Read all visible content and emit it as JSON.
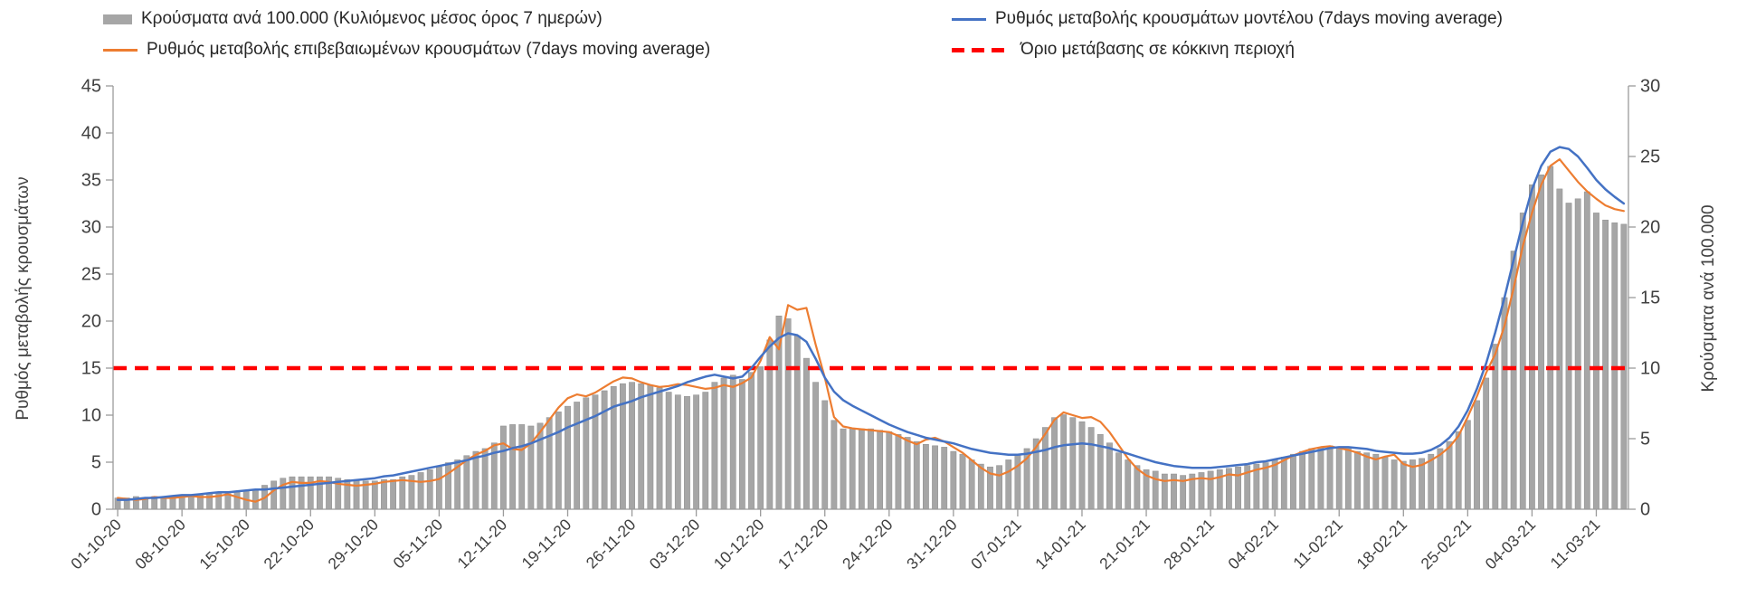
{
  "legend": {
    "items": [
      {
        "id": "cases-bars",
        "label": "Κρούσματα ανά 100.000 (Κυλιόμενος μέσος όρος 7 ημερών)",
        "swatch": "gray-bar"
      },
      {
        "id": "model-line",
        "label": "Ρυθμός μεταβολής κρουσμάτων μοντέλου (7days moving average)",
        "swatch": "blue-line"
      },
      {
        "id": "confirmed-line",
        "label": "Ρυθμός μεταβολής επιβεβαιωμένων κρουσμάτων (7days moving average)",
        "swatch": "orange-line"
      },
      {
        "id": "red-threshold",
        "label": "Όριο μετάβασης σε κόκκινη περιοχή",
        "swatch": "red-dashed"
      }
    ]
  },
  "colors": {
    "bars": "#a6a6a6",
    "bars_stroke": "#8f8f8f",
    "model": "#4472c4",
    "confirmed": "#ed7d31",
    "threshold": "#ff0000",
    "axis": "#9b9b9b",
    "tick_text": "#404040"
  },
  "chart_data": {
    "type": "bar",
    "note": "Daily values 01-10-20 through mid-03-21; bars on right axis, lines on left axis",
    "n_points": 165,
    "x_tick_labels": [
      "01-10-20",
      "08-10-20",
      "15-10-20",
      "22-10-20",
      "29-10-20",
      "05-11-20",
      "12-11-20",
      "19-11-20",
      "26-11-20",
      "03-12-20",
      "10-12-20",
      "17-12-20",
      "24-12-20",
      "31-12-20",
      "07-01-21",
      "14-01-21",
      "21-01-21",
      "28-01-21",
      "04-02-21",
      "11-02-21",
      "18-02-21",
      "25-02-21",
      "04-03-21",
      "11-03-21"
    ],
    "tick_indices": [
      0,
      7,
      14,
      21,
      28,
      35,
      42,
      49,
      56,
      63,
      70,
      77,
      84,
      91,
      98,
      105,
      112,
      119,
      126,
      133,
      140,
      147,
      154,
      161
    ],
    "left_axis": {
      "label": "Ρυθμός μεταβολής κρουσμάτων",
      "min": 0,
      "max": 45,
      "step": 5
    },
    "right_axis": {
      "label": "Κρούσματα ανά 100.000",
      "min": 0,
      "max": 30,
      "step": 5
    },
    "series": [
      {
        "id": "cases_per_100k",
        "name": "Κρούσματα ανά 100.000 (Κυλιόμενος μέσος όρος 7 ημερών)",
        "type": "bar",
        "axis": "right",
        "color": "#a6a6a6",
        "values": [
          0.8,
          0.8,
          0.9,
          0.8,
          0.9,
          0.9,
          0.9,
          0.9,
          1.0,
          1.0,
          1.1,
          1.1,
          1.1,
          1.2,
          1.3,
          1.4,
          1.7,
          2.0,
          2.2,
          2.3,
          2.3,
          2.3,
          2.3,
          2.3,
          2.2,
          2.1,
          2.1,
          2.0,
          2.0,
          2.1,
          2.1,
          2.3,
          2.4,
          2.6,
          2.8,
          3.0,
          3.3,
          3.5,
          3.8,
          4.1,
          4.3,
          4.7,
          5.9,
          6.0,
          6.0,
          5.9,
          6.1,
          6.5,
          6.9,
          7.3,
          7.6,
          7.9,
          8.1,
          8.4,
          8.7,
          8.9,
          9.0,
          8.9,
          8.8,
          8.6,
          8.3,
          8.1,
          8.0,
          8.1,
          8.3,
          9.0,
          9.3,
          9.5,
          9.2,
          9.7,
          10.1,
          12.0,
          13.7,
          13.5,
          12.3,
          10.7,
          9.0,
          7.7,
          6.3,
          5.7,
          5.7,
          5.7,
          5.7,
          5.6,
          5.5,
          5.3,
          5.1,
          4.8,
          4.6,
          4.5,
          4.4,
          4.1,
          3.9,
          3.5,
          3.2,
          3.0,
          3.1,
          3.5,
          3.9,
          4.3,
          5.0,
          5.8,
          6.5,
          6.7,
          6.5,
          6.2,
          5.8,
          5.3,
          4.7,
          4.0,
          3.5,
          3.1,
          2.8,
          2.7,
          2.5,
          2.5,
          2.4,
          2.5,
          2.6,
          2.7,
          2.8,
          2.9,
          3.0,
          3.1,
          3.2,
          3.3,
          3.5,
          3.7,
          3.9,
          4.1,
          4.3,
          4.4,
          4.5,
          4.4,
          4.3,
          4.1,
          4.0,
          3.9,
          3.7,
          3.5,
          3.4,
          3.5,
          3.6,
          3.9,
          4.3,
          4.8,
          5.5,
          6.3,
          7.7,
          9.3,
          11.7,
          15.0,
          18.3,
          21.0,
          23.0,
          23.7,
          24.3,
          22.7,
          21.7,
          22.0,
          22.5,
          21.0,
          20.5,
          20.3,
          20.2
        ]
      },
      {
        "id": "confirmed_rate",
        "name": "Ρυθμός μεταβολής επιβεβαιωμένων κρουσμάτων (7days moving average)",
        "type": "line",
        "axis": "left",
        "color": "#ed7d31",
        "width": 2.2,
        "values": [
          1.2,
          1.1,
          1.0,
          1.1,
          1.3,
          1.2,
          1.2,
          1.3,
          1.4,
          1.3,
          1.3,
          1.4,
          1.6,
          1.3,
          1.0,
          0.8,
          1.2,
          2.0,
          2.6,
          2.9,
          2.8,
          2.8,
          3.0,
          2.9,
          2.7,
          2.6,
          2.5,
          2.6,
          2.7,
          2.9,
          3.0,
          3.1,
          3.0,
          2.9,
          3.0,
          3.2,
          3.8,
          4.5,
          5.2,
          5.8,
          6.2,
          6.8,
          7.0,
          6.4,
          6.3,
          7.0,
          8.2,
          9.5,
          10.8,
          11.8,
          12.2,
          12.0,
          12.4,
          13.0,
          13.6,
          14.0,
          13.9,
          13.5,
          13.2,
          13.0,
          13.1,
          13.3,
          13.2,
          13.0,
          12.8,
          12.9,
          13.2,
          13.0,
          13.4,
          14.0,
          15.8,
          18.3,
          17.0,
          21.7,
          21.2,
          21.4,
          17.5,
          14.0,
          9.8,
          8.8,
          8.6,
          8.5,
          8.4,
          8.3,
          8.2,
          7.8,
          7.3,
          6.9,
          7.4,
          7.6,
          7.2,
          6.6,
          6.0,
          5.2,
          4.4,
          3.8,
          3.6,
          4.0,
          4.6,
          5.4,
          6.6,
          8.0,
          9.5,
          10.3,
          10.0,
          9.7,
          9.8,
          9.3,
          8.2,
          6.8,
          5.4,
          4.3,
          3.6,
          3.2,
          3.0,
          3.1,
          3.0,
          3.2,
          3.3,
          3.2,
          3.4,
          3.7,
          3.6,
          3.9,
          4.2,
          4.4,
          4.7,
          5.2,
          5.7,
          6.1,
          6.4,
          6.6,
          6.7,
          6.5,
          6.3,
          6.0,
          5.6,
          5.3,
          5.6,
          5.8,
          4.8,
          4.5,
          4.7,
          5.2,
          5.8,
          6.6,
          7.8,
          9.8,
          12.0,
          14.5,
          16.5,
          19.5,
          23.5,
          28.0,
          31.5,
          34.5,
          36.5,
          37.2,
          36.0,
          34.8,
          33.8,
          33.0,
          32.3,
          31.9,
          31.7
        ]
      },
      {
        "id": "model_rate",
        "name": "Ρυθμός μεταβολής κρουσμάτων μοντέλου (7days moving average)",
        "type": "line",
        "axis": "left",
        "color": "#4472c4",
        "width": 2.5,
        "values": [
          1.0,
          1.0,
          1.1,
          1.2,
          1.2,
          1.3,
          1.4,
          1.5,
          1.5,
          1.6,
          1.7,
          1.8,
          1.8,
          1.9,
          2.0,
          2.1,
          2.1,
          2.2,
          2.3,
          2.4,
          2.5,
          2.6,
          2.7,
          2.8,
          2.9,
          3.0,
          3.1,
          3.2,
          3.3,
          3.5,
          3.6,
          3.8,
          4.0,
          4.2,
          4.4,
          4.6,
          4.8,
          5.0,
          5.2,
          5.5,
          5.7,
          6.0,
          6.2,
          6.5,
          6.7,
          7.0,
          7.4,
          7.8,
          8.2,
          8.7,
          9.1,
          9.5,
          9.9,
          10.4,
          10.9,
          11.2,
          11.5,
          11.9,
          12.2,
          12.5,
          12.8,
          13.1,
          13.5,
          13.8,
          14.1,
          14.3,
          14.1,
          13.9,
          14.1,
          15.0,
          16.2,
          17.3,
          18.2,
          18.7,
          18.5,
          17.8,
          16.0,
          14.0,
          12.5,
          11.6,
          11.0,
          10.5,
          10.0,
          9.5,
          9.0,
          8.6,
          8.2,
          7.9,
          7.6,
          7.4,
          7.2,
          7.0,
          6.7,
          6.4,
          6.2,
          6.0,
          5.9,
          5.8,
          5.8,
          5.9,
          6.1,
          6.3,
          6.6,
          6.8,
          6.9,
          7.0,
          6.9,
          6.7,
          6.5,
          6.2,
          5.9,
          5.6,
          5.3,
          5.0,
          4.8,
          4.6,
          4.5,
          4.4,
          4.4,
          4.4,
          4.5,
          4.6,
          4.7,
          4.8,
          5.0,
          5.1,
          5.3,
          5.5,
          5.7,
          5.9,
          6.1,
          6.3,
          6.5,
          6.6,
          6.6,
          6.5,
          6.4,
          6.2,
          6.1,
          6.0,
          5.9,
          5.9,
          6.0,
          6.3,
          6.8,
          7.6,
          8.8,
          10.5,
          12.8,
          15.5,
          18.8,
          22.5,
          26.5,
          30.5,
          34.0,
          36.5,
          38.0,
          38.5,
          38.3,
          37.5,
          36.3,
          35.0,
          34.0,
          33.2,
          32.5
        ]
      },
      {
        "id": "red_threshold",
        "name": "Όριο μετάβασης σε κόκκινη περιοχή",
        "type": "threshold",
        "axis": "left",
        "color": "#ff0000",
        "value": 15
      }
    ]
  }
}
